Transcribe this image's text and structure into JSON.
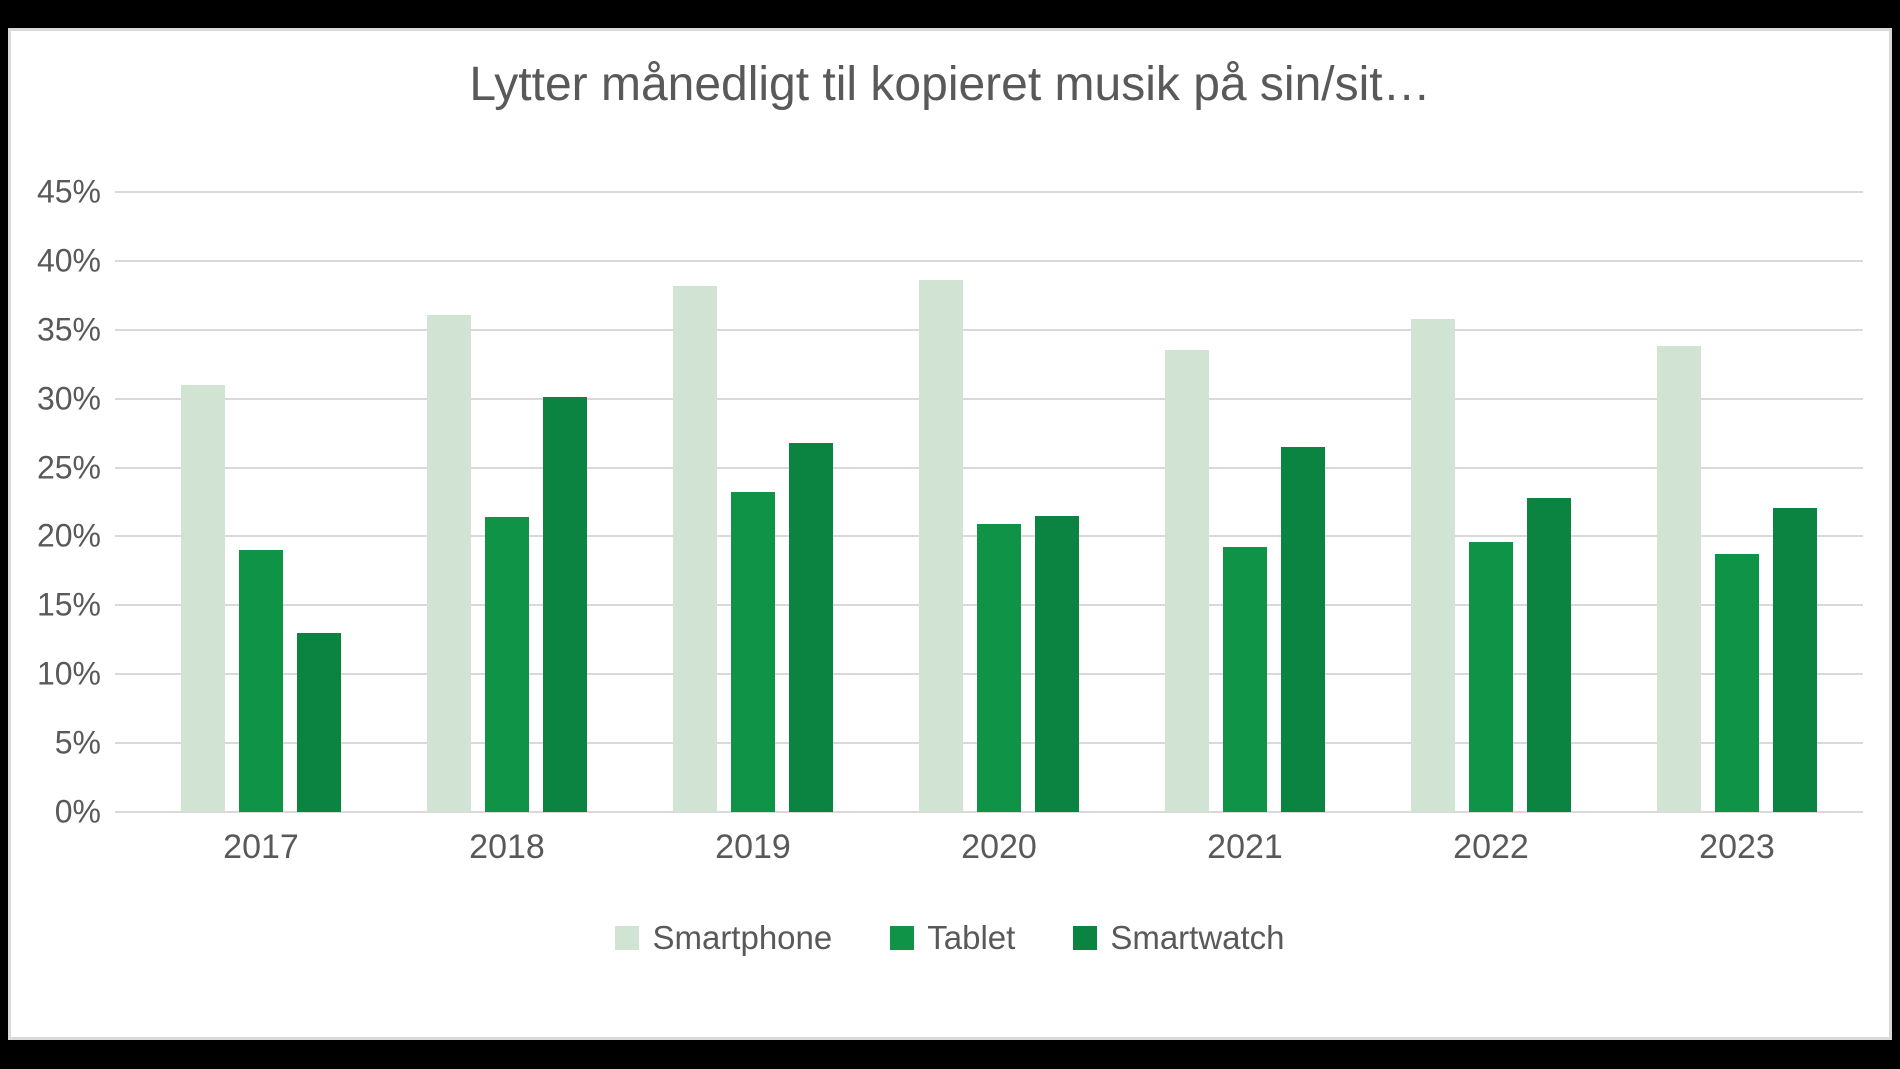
{
  "chart_data": {
    "type": "bar",
    "title": "Lytter månedligt til kopieret musik på sin/sit…",
    "categories": [
      "2017",
      "2018",
      "2019",
      "2020",
      "2021",
      "2022",
      "2023"
    ],
    "series": [
      {
        "name": "Smartphone",
        "color": "#D1E3D3",
        "values": [
          31.0,
          36.1,
          38.2,
          38.6,
          33.5,
          35.8,
          33.8
        ]
      },
      {
        "name": "Tablet",
        "color": "#0E9347",
        "values": [
          19.0,
          21.4,
          23.2,
          20.9,
          19.2,
          19.6,
          18.7
        ]
      },
      {
        "name": "Smartwatch",
        "color": "#0A8440",
        "values": [
          13.0,
          30.1,
          26.8,
          21.5,
          26.5,
          22.8,
          22.1
        ]
      }
    ],
    "ylim": [
      0,
      45
    ],
    "ytick_step": 5,
    "ytick_labels": [
      "0%",
      "5%",
      "10%",
      "15%",
      "20%",
      "25%",
      "30%",
      "35%",
      "40%",
      "45%"
    ],
    "grid": true,
    "legend_position": "bottom",
    "colors": {
      "text": "#595959",
      "gridline": "#D9D9D9",
      "panel_background": "#FFFFFF",
      "frame": "#D9D9D9",
      "letterbox": "#000000"
    }
  }
}
